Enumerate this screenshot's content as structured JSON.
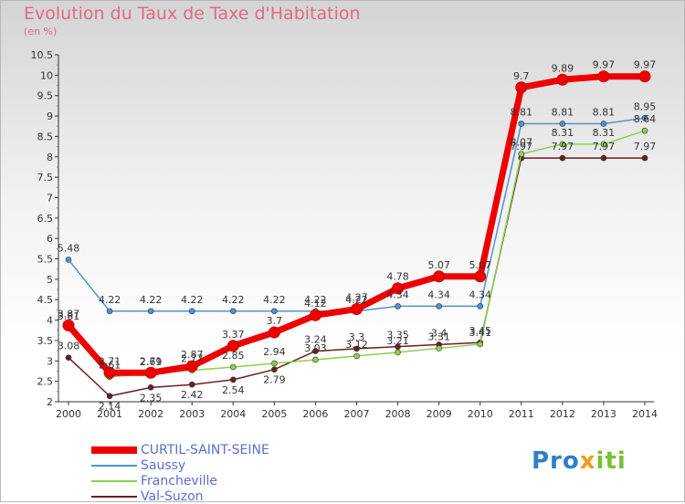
{
  "chart_data": {
    "type": "line",
    "title": "Evolution du Taux de Taxe d'Habitation",
    "subtitle": "(en %)",
    "x": [
      "2000",
      "2001",
      "2002",
      "2003",
      "2004",
      "2005",
      "2006",
      "2007",
      "2008",
      "2009",
      "2010",
      "2011",
      "2012",
      "2013",
      "2014"
    ],
    "ylim": [
      2,
      10.5
    ],
    "yticks": [
      "2",
      "2.5",
      "3",
      "3.5",
      "4",
      "4.5",
      "5",
      "5.5",
      "6",
      "6.5",
      "7",
      "7.5",
      "8",
      "8.5",
      "9",
      "9.5",
      "10",
      "10.5"
    ],
    "grid": false,
    "legend_position": "bottom-left",
    "series": [
      {
        "name": "CURTIL-SAINT-SEINE",
        "color": "#ee0000",
        "values": [
          3.87,
          2.71,
          2.71,
          2.87,
          3.37,
          3.7,
          4.12,
          4.27,
          4.78,
          5.07,
          5.07,
          9.7,
          9.89,
          9.97,
          9.97
        ],
        "labels": [
          "3.87",
          "2.71",
          "2.71",
          "2.87",
          "3.37",
          "3.7",
          "4.12",
          "4.27",
          "4.78",
          "5.07",
          "5.07",
          "9.7",
          "9.89",
          "9.97",
          "9.97"
        ]
      },
      {
        "name": "Saussy",
        "color": "#4f93cc",
        "values": [
          5.48,
          4.22,
          4.22,
          4.22,
          4.22,
          4.22,
          4.22,
          4.22,
          4.34,
          4.34,
          4.34,
          8.81,
          8.81,
          8.81,
          8.95
        ],
        "labels": [
          "5.48",
          "4.22",
          "4.22",
          "4.22",
          "4.22",
          "4.22",
          "4.22",
          "4.22",
          "4.34",
          "4.34",
          "4.34",
          "8.81",
          "8.81",
          "8.81",
          "8.95"
        ]
      },
      {
        "name": "Francheville",
        "color": "#8bd14f",
        "values": [
          3.81,
          2.61,
          2.69,
          2.77,
          2.85,
          2.94,
          3.03,
          3.12,
          3.21,
          3.31,
          3.41,
          8.07,
          8.31,
          8.31,
          8.64
        ],
        "labels": [
          "3.81",
          "2.61",
          "2.69",
          "2.77",
          "2.85",
          "2.94",
          "3.03",
          "3.12",
          "3.21",
          "3.31",
          "3.41",
          "8.07",
          "8.31",
          "8.31",
          "8.64"
        ]
      },
      {
        "name": "Val-Suzon",
        "color": "#6b1f1f",
        "values": [
          3.08,
          2.14,
          2.35,
          2.42,
          2.54,
          2.79,
          3.24,
          3.3,
          3.35,
          3.4,
          3.45,
          7.97,
          7.97,
          7.97,
          7.97
        ],
        "labels": [
          "3.08",
          "2.14",
          "2.35",
          "2.42",
          "2.54",
          "2.79",
          "3.24",
          "3.3",
          "3.35",
          "3.4",
          "3.45",
          "7.97",
          "7.97",
          "7.97",
          "7.97"
        ]
      }
    ]
  },
  "logo": {
    "p1": "Pro",
    "p2": "x",
    "p3": "iti"
  }
}
